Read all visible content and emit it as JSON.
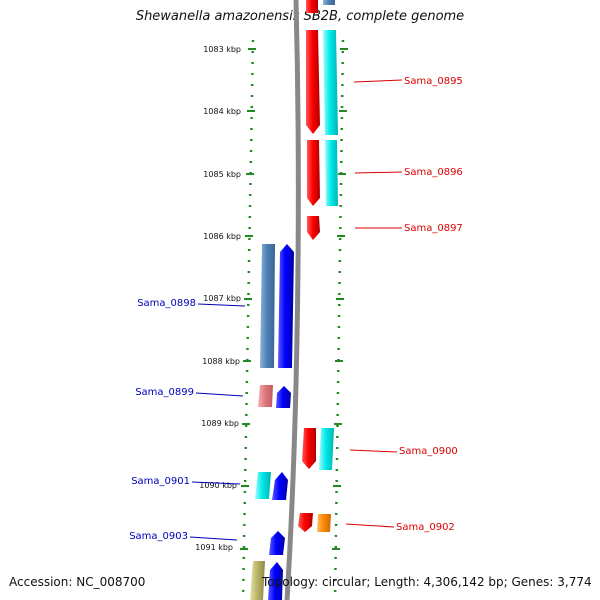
{
  "header": {
    "title": "Shewanella amazonensis SB2B, complete genome"
  },
  "footer": {
    "accession": "Accession: NC_008700",
    "stats": "Topology: circular; Length: 4,306,142 bp; Genes: 3,774"
  },
  "scale_labels": [
    "1083 kbp",
    "1084 kbp",
    "1085 kbp",
    "1086 kbp",
    "1087 kbp",
    "1088 kbp",
    "1089 kbp",
    "1090 kbp",
    "1091 kbp"
  ],
  "genes": {
    "forward": [
      {
        "name": "Sama_0895",
        "color": "#dd0000"
      },
      {
        "name": "Sama_0896",
        "color": "#dd0000"
      },
      {
        "name": "Sama_0897",
        "color": "#dd0000"
      },
      {
        "name": "Sama_0900",
        "color": "#dd0000"
      },
      {
        "name": "Sama_0902",
        "color": "#dd0000"
      }
    ],
    "reverse": [
      {
        "name": "Sama_0898",
        "color": "#0000bb"
      },
      {
        "name": "Sama_0899",
        "color": "#0000bb"
      },
      {
        "name": "Sama_0901",
        "color": "#0000bb"
      },
      {
        "name": "Sama_0903",
        "color": "#0000bb"
      }
    ]
  },
  "colors": {
    "backbone": "#888888",
    "ticks": "#228822",
    "cds_forward": "#ff0000",
    "cds_reverse": "#0000ff",
    "cog_cyan": "#00e5e5",
    "cog_steelblue": "#4f82b8",
    "cog_pink": "#e07a80",
    "cog_orange": "#ff8800",
    "cog_khaki": "#bdb76b"
  }
}
